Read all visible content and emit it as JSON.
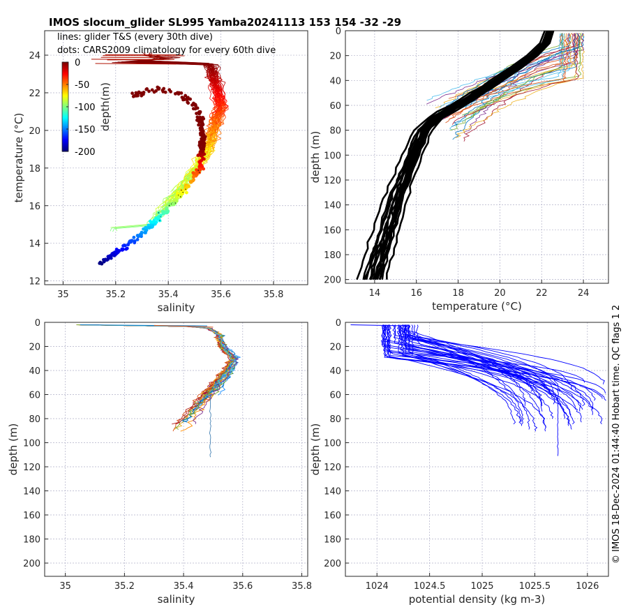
{
  "figure_title": "IMOS slocum_glider SL995 Yamba20241113 153  154  -32  -29",
  "side_text": "© IMOS 18-Dec-2024 01:44:40 Hobart time. QC flags 1  2",
  "legend": {
    "line1": "lines: glider T&S (every 30th dive)",
    "line2": "dots: CARS2009 climatology for every 60th dive"
  },
  "colorbar": {
    "label": "depth(m)",
    "ticks": [
      "0",
      "-50",
      "-100",
      "-150",
      "-200"
    ]
  },
  "colors": {
    "jet": [
      "#00007f",
      "#0000ff",
      "#007fff",
      "#00ffff",
      "#7fff7f",
      "#ffff00",
      "#ff7f00",
      "#ff0000",
      "#7f0000"
    ],
    "density_line": "#0000ff",
    "temperature_line": "#000000",
    "grid": "#b0b0c8"
  },
  "chart_data": [
    {
      "id": "ts",
      "type": "scatter",
      "xlabel": "salinity",
      "ylabel": "temperature (°C)",
      "xlim": [
        34.93,
        35.93
      ],
      "ylim": [
        11.8,
        25.3
      ],
      "xticks": [
        "35",
        "35.2",
        "35.4",
        "35.6",
        "35.8"
      ],
      "xtick_values": [
        35,
        35.2,
        35.4,
        35.6,
        35.8
      ],
      "yticks": [
        "12",
        "14",
        "16",
        "18",
        "20",
        "22",
        "24"
      ],
      "ytick_values": [
        12,
        14,
        16,
        18,
        20,
        22,
        24
      ],
      "glider_profile_curve": [
        [
          35.2,
          23.6
        ],
        [
          35.45,
          23.9
        ],
        [
          35.56,
          23.5
        ],
        [
          35.58,
          22.5
        ],
        [
          35.6,
          21.3
        ],
        [
          35.57,
          20.0
        ],
        [
          35.55,
          19.0
        ],
        [
          35.52,
          18.3
        ],
        [
          35.47,
          17.3
        ],
        [
          35.42,
          16.5
        ],
        [
          35.37,
          15.7
        ],
        [
          35.33,
          14.9
        ]
      ],
      "climatology_curve": [
        [
          35.14,
          12.9
        ],
        [
          35.18,
          13.3
        ],
        [
          35.24,
          13.9
        ],
        [
          35.3,
          14.5
        ],
        [
          35.36,
          15.3
        ],
        [
          35.42,
          16.2
        ],
        [
          35.48,
          17.1
        ],
        [
          35.52,
          18.0
        ],
        [
          35.53,
          18.9
        ],
        [
          35.53,
          19.8
        ],
        [
          35.52,
          20.8
        ],
        [
          35.49,
          21.5
        ],
        [
          35.43,
          22.0
        ],
        [
          35.36,
          22.2
        ],
        [
          35.3,
          22.0
        ],
        [
          35.26,
          21.8
        ]
      ],
      "temperature_range": [
        12.9,
        24.0
      ],
      "depth_range_m": [
        0,
        -200
      ]
    },
    {
      "id": "temp_depth",
      "type": "line",
      "xlabel": "temperature (°C)",
      "ylabel": "depth (m)",
      "xlim": [
        12.6,
        25.2
      ],
      "ylim": [
        0,
        203
      ],
      "xticks": [
        "14",
        "16",
        "18",
        "20",
        "22",
        "24"
      ],
      "xtick_values": [
        14,
        16,
        18,
        20,
        22,
        24
      ],
      "yticks": [
        "0",
        "20",
        "40",
        "60",
        "80",
        "100",
        "120",
        "140",
        "160",
        "180",
        "200"
      ],
      "ytick_values": [
        0,
        20,
        40,
        60,
        80,
        100,
        120,
        140,
        160,
        180,
        200
      ],
      "climatology_thick_profile": [
        [
          22.4,
          0
        ],
        [
          22.2,
          10
        ],
        [
          21.6,
          20
        ],
        [
          20.8,
          30
        ],
        [
          19.9,
          40
        ],
        [
          19.0,
          50
        ],
        [
          18.0,
          60
        ],
        [
          17.0,
          70
        ],
        [
          16.4,
          80
        ],
        [
          15.9,
          100
        ],
        [
          15.2,
          130
        ],
        [
          14.5,
          170
        ],
        [
          14.0,
          200
        ]
      ],
      "glider_thin_profile": [
        [
          23.8,
          0
        ],
        [
          23.8,
          10
        ],
        [
          23.7,
          20
        ],
        [
          23.4,
          30
        ],
        [
          22.0,
          40
        ],
        [
          20.5,
          50
        ],
        [
          19.0,
          60
        ],
        [
          17.8,
          70
        ],
        [
          17.0,
          80
        ]
      ],
      "glider_max_depth_m": 85
    },
    {
      "id": "sal_depth",
      "type": "line",
      "xlabel": "salinity",
      "ylabel": "depth (m)",
      "xlim": [
        34.93,
        35.82
      ],
      "ylim": [
        0,
        211
      ],
      "xticks": [
        "35",
        "35.2",
        "35.4",
        "35.6",
        "35.8"
      ],
      "xtick_values": [
        35,
        35.2,
        35.4,
        35.6,
        35.8
      ],
      "yticks": [
        "0",
        "20",
        "40",
        "60",
        "80",
        "100",
        "120",
        "140",
        "160",
        "180",
        "200"
      ],
      "ytick_values": [
        0,
        20,
        40,
        60,
        80,
        100,
        120,
        140,
        160,
        180,
        200
      ],
      "example_profile": [
        [
          35.05,
          2
        ],
        [
          35.3,
          2.5
        ],
        [
          35.48,
          4
        ],
        [
          35.52,
          10
        ],
        [
          35.53,
          20
        ],
        [
          35.57,
          30
        ],
        [
          35.55,
          40
        ],
        [
          35.5,
          55
        ],
        [
          35.45,
          70
        ],
        [
          35.4,
          85
        ],
        [
          35.38,
          92
        ]
      ],
      "max_depth_m": 112
    },
    {
      "id": "dens_depth",
      "type": "line",
      "xlabel": "potential density (kg m-3)",
      "ylabel": "depth (m)",
      "xlim": [
        1023.7,
        1026.2
      ],
      "ylim": [
        0,
        211
      ],
      "xticks": [
        "1024",
        "1024.5",
        "1025",
        "1025.5",
        "1026"
      ],
      "xtick_values": [
        1024,
        1024.5,
        1025,
        1025.5,
        1026
      ],
      "yticks": [
        "0",
        "20",
        "40",
        "60",
        "80",
        "100",
        "120",
        "140",
        "160",
        "180",
        "200"
      ],
      "ytick_values": [
        0,
        20,
        40,
        60,
        80,
        100,
        120,
        140,
        160,
        180,
        200
      ],
      "example_profile": [
        [
          1023.75,
          2
        ],
        [
          1024.1,
          3
        ],
        [
          1024.3,
          10
        ],
        [
          1024.6,
          20
        ],
        [
          1025.0,
          30
        ],
        [
          1025.4,
          40
        ],
        [
          1025.7,
          55
        ],
        [
          1025.9,
          70
        ],
        [
          1026.05,
          85
        ]
      ],
      "max_depth_m": 112
    }
  ]
}
